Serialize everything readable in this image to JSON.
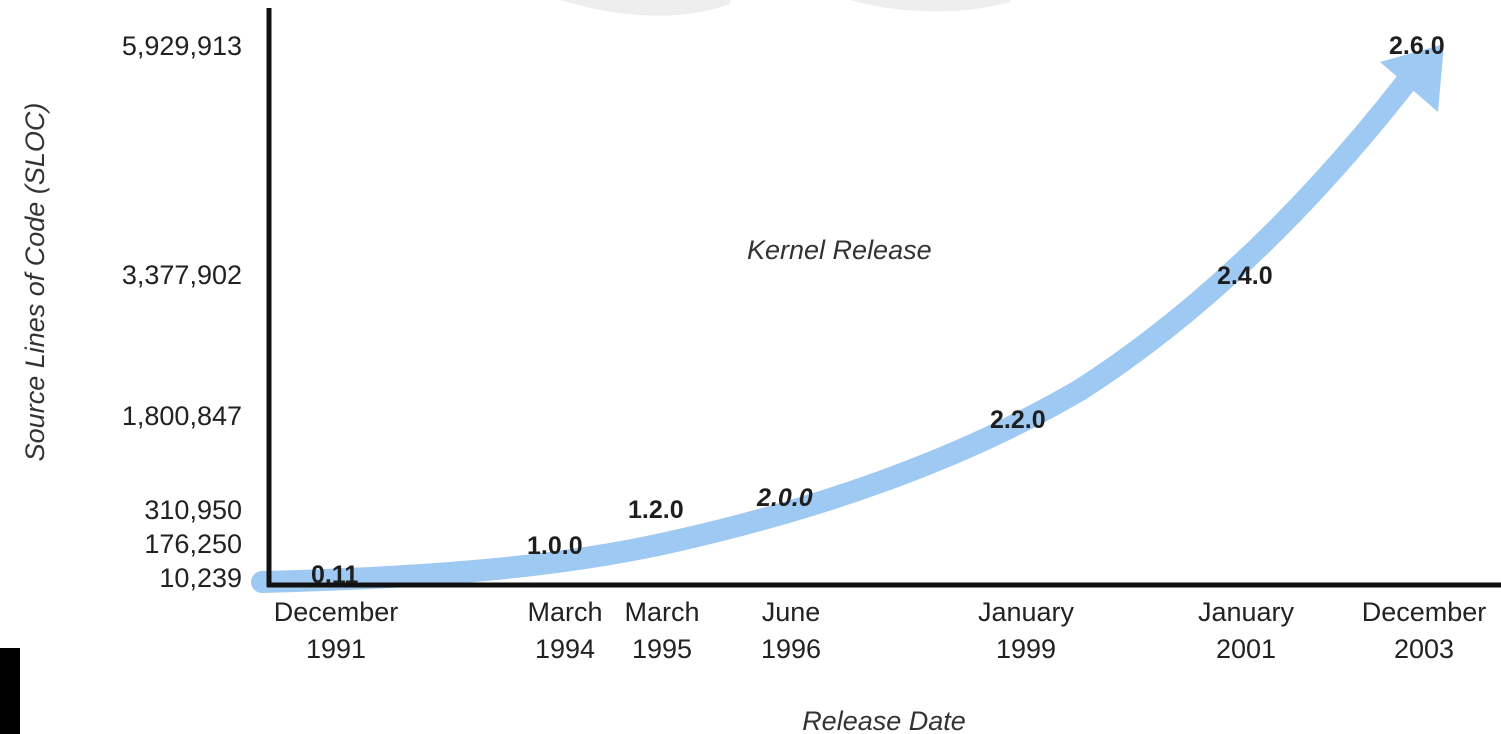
{
  "chart_data": {
    "type": "line",
    "title": "",
    "annotation": "Kernel Release",
    "xlabel": "Release Date",
    "ylabel": "Source Lines of Code (SLOC)",
    "y_ticks": [
      "5,929,913",
      "3,377,902",
      "1,800,847",
      "310,950",
      "176,250",
      "10,239"
    ],
    "x_ticks": [
      [
        "December",
        "1991"
      ],
      [
        "March",
        "1994"
      ],
      [
        "March",
        "1995"
      ],
      [
        "June",
        "1996"
      ],
      [
        "January",
        "1999"
      ],
      [
        "January",
        "2001"
      ],
      [
        "December",
        "2003"
      ]
    ],
    "series": [
      {
        "points": [
          {
            "x": "December 1991",
            "y": 10239,
            "label": "0.11"
          },
          {
            "x": "March 1994",
            "y": 176250,
            "label": "1.0.0"
          },
          {
            "x": "March 1995",
            "y": 310950,
            "label": "1.2.0"
          },
          {
            "x": "June 1996",
            "y": 777956,
            "label": "2.0.0"
          },
          {
            "x": "January 1999",
            "y": 1800847,
            "label": "2.2.0"
          },
          {
            "x": "January 2001",
            "y": 3377902,
            "label": "2.4.0"
          },
          {
            "x": "December 2003",
            "y": 5929913,
            "label": "2.6.0"
          }
        ]
      }
    ],
    "arrow_color": "#9ec9f2",
    "axis_color": "#111111",
    "grid": false
  }
}
